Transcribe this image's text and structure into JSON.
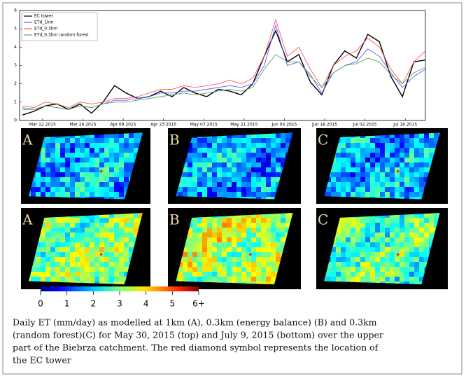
{
  "chart_data": {
    "type": "line",
    "x": [
      "2015-03-05",
      "2015-03-09",
      "2015-03-13",
      "2015-03-17",
      "2015-03-21",
      "2015-03-25",
      "2015-03-29",
      "2015-04-02",
      "2015-04-06",
      "2015-04-10",
      "2015-04-14",
      "2015-04-18",
      "2015-04-22",
      "2015-04-26",
      "2015-04-30",
      "2015-05-04",
      "2015-05-08",
      "2015-05-12",
      "2015-05-16",
      "2015-05-20",
      "2015-05-24",
      "2015-05-28",
      "2015-06-01",
      "2015-06-05",
      "2015-06-09",
      "2015-06-13",
      "2015-06-17",
      "2015-06-21",
      "2015-06-25",
      "2015-06-29",
      "2015-07-03",
      "2015-07-07",
      "2015-07-11",
      "2015-07-15",
      "2015-07-19",
      "2015-07-23"
    ],
    "series": [
      {
        "name": "EC tower",
        "color": "#000000",
        "values": [
          0.3,
          0.5,
          0.8,
          0.9,
          0.6,
          0.9,
          0.4,
          1.0,
          1.9,
          1.5,
          1.2,
          1.3,
          1.6,
          1.3,
          1.8,
          1.5,
          1.3,
          1.7,
          1.6,
          1.4,
          2.0,
          3.5,
          4.9,
          3.2,
          3.6,
          2.1,
          1.4,
          3.0,
          3.8,
          3.4,
          4.7,
          4.3,
          2.4,
          1.3,
          3.2,
          3.3
        ]
      },
      {
        "name": "ETd_1km",
        "color": "#5a5aff",
        "values": [
          0.7,
          0.6,
          0.8,
          0.7,
          0.6,
          0.8,
          0.7,
          0.9,
          1.1,
          1.1,
          1.2,
          1.3,
          1.5,
          1.5,
          1.6,
          1.6,
          1.7,
          1.8,
          1.9,
          1.8,
          2.0,
          3.0,
          5.2,
          3.0,
          3.2,
          2.5,
          1.5,
          2.6,
          3.0,
          3.2,
          3.9,
          3.5,
          2.6,
          1.8,
          2.4,
          2.8
        ]
      },
      {
        "name": "ETd_0.3km",
        "color": "#ff5a5a",
        "values": [
          0.8,
          0.7,
          1.0,
          0.9,
          0.7,
          1.0,
          0.9,
          1.0,
          1.2,
          1.2,
          1.3,
          1.5,
          1.7,
          1.7,
          1.9,
          1.8,
          1.9,
          2.0,
          2.2,
          2.0,
          2.3,
          3.5,
          5.5,
          3.5,
          4.0,
          2.8,
          1.8,
          3.0,
          3.5,
          3.8,
          4.5,
          4.0,
          2.8,
          2.0,
          3.2,
          3.8
        ]
      },
      {
        "name": "ETd_0.3km random forest",
        "color": "#5aaa5a",
        "values": [
          0.6,
          0.6,
          0.8,
          0.7,
          0.6,
          0.8,
          0.7,
          0.9,
          1.0,
          1.0,
          1.1,
          1.2,
          1.3,
          1.4,
          1.5,
          1.4,
          1.5,
          1.6,
          1.7,
          1.6,
          1.8,
          2.8,
          3.6,
          3.2,
          3.2,
          2.4,
          1.8,
          2.6,
          3.0,
          3.1,
          3.4,
          3.2,
          2.5,
          2.0,
          2.6,
          2.9
        ]
      }
    ],
    "xlim": [
      "2015-03-04",
      "2015-07-23"
    ],
    "xticks": [
      {
        "value": "2015-03-12",
        "label": "Mar 12 2015"
      },
      {
        "value": "2015-03-26",
        "label": "Mar 26 2015"
      },
      {
        "value": "2015-04-09",
        "label": "Apr 09 2015"
      },
      {
        "value": "2015-04-23",
        "label": "Apr 23 2015"
      },
      {
        "value": "2015-05-07",
        "label": "May 07 2015"
      },
      {
        "value": "2015-05-21",
        "label": "May 21 2015"
      },
      {
        "value": "2015-06-04",
        "label": "Jun 04 2015"
      },
      {
        "value": "2015-06-18",
        "label": "Jun 18 2015"
      },
      {
        "value": "2015-07-02",
        "label": "Jul 02 2015"
      },
      {
        "value": "2015-07-16",
        "label": "Jul 16 2015"
      }
    ],
    "ylim": [
      0,
      6
    ],
    "yticks": [
      0,
      1,
      2,
      3,
      4,
      5,
      6
    ],
    "legend": "upper left"
  },
  "maps": {
    "rows": [
      [
        "A",
        "B",
        "C"
      ],
      [
        "A",
        "B",
        "C"
      ]
    ]
  },
  "colorbar": {
    "lim": [
      0,
      6
    ],
    "ticks": [
      0,
      1,
      2,
      3,
      4,
      5,
      {
        "value": 6,
        "label": "6+"
      }
    ]
  },
  "caption": [
    "Daily ET (mm/day) as modelled at 1km (A), 0.3km (energy balance) (B) and 0.3km",
    "(random forest)(C) for May 30, 2015 (top) and July 9, 2015 (bottom) over the upper",
    "part of the Biebrza catchment.  The red diamond symbol represents the location of",
    "the EC tower"
  ]
}
